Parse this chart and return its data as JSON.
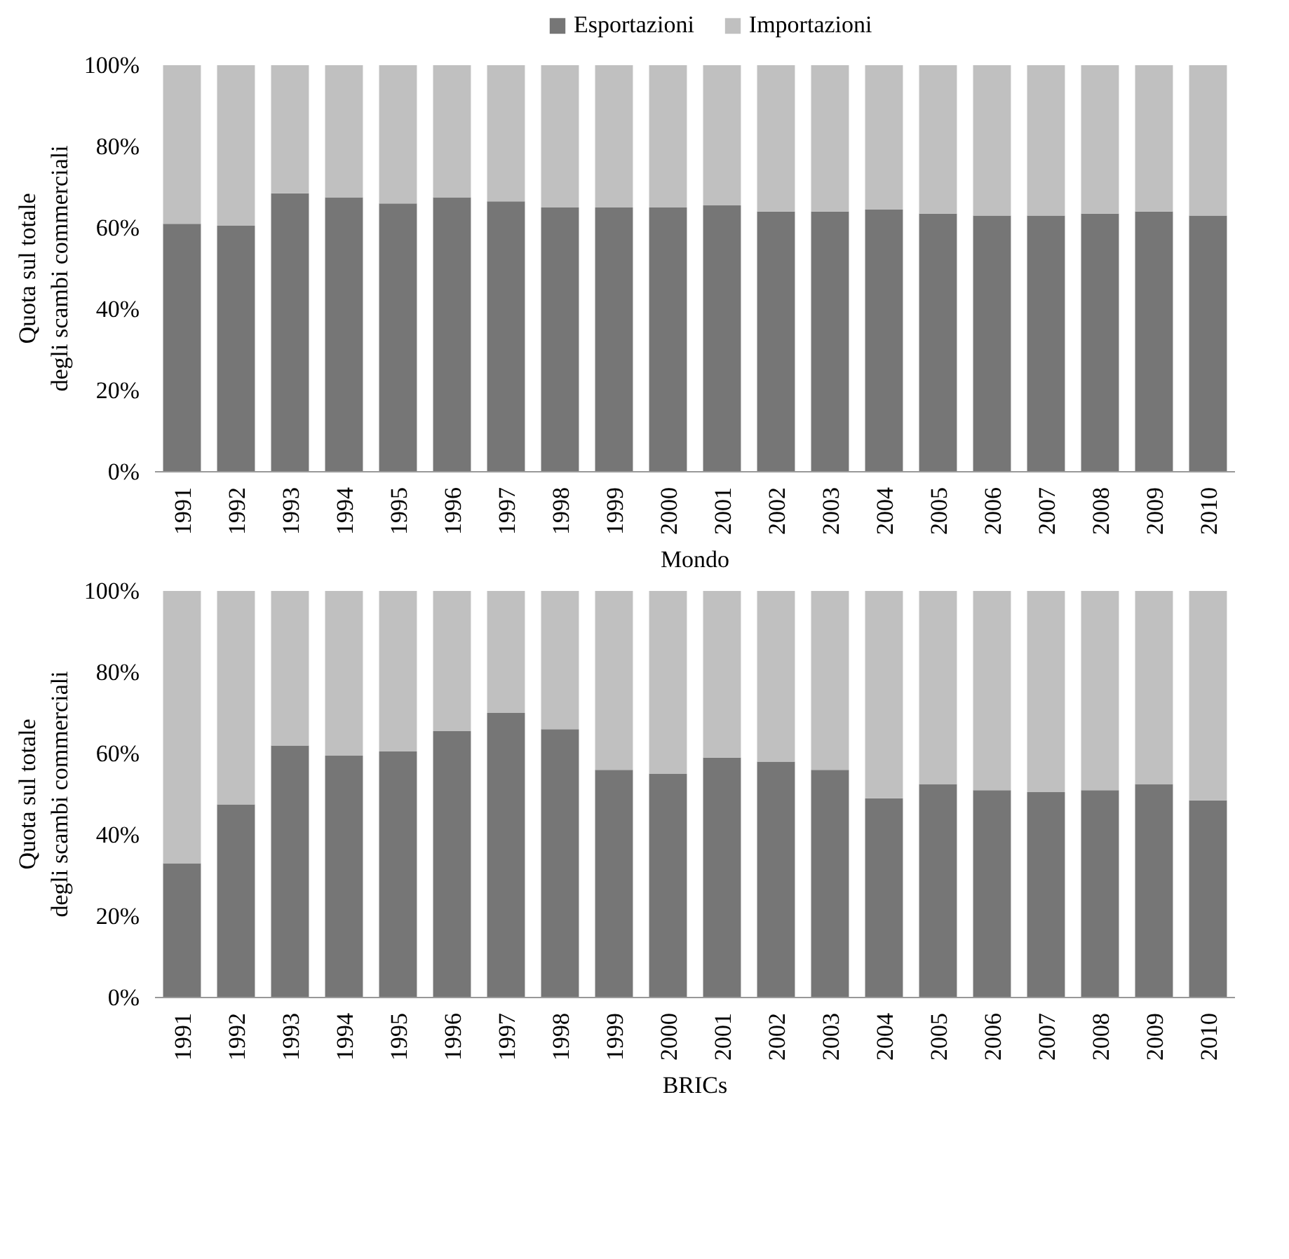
{
  "chart_data": [
    {
      "type": "bar",
      "stacked": true,
      "xlabel": "Mondo",
      "ylabel": "Quota sul totale\ndegli scambi commerciali",
      "legend": "top",
      "grid": false,
      "categories": [
        "1991",
        "1992",
        "1993",
        "1994",
        "1995",
        "1996",
        "1997",
        "1998",
        "1999",
        "2000",
        "2001",
        "2002",
        "2003",
        "2004",
        "2005",
        "2006",
        "2007",
        "2008",
        "2009",
        "2010"
      ],
      "ylim": [
        0,
        100
      ],
      "yticks": [
        {
          "value": 0,
          "label": "0%"
        },
        {
          "value": 20,
          "label": "20%"
        },
        {
          "value": 40,
          "label": "40%"
        },
        {
          "value": 60,
          "label": "60%"
        },
        {
          "value": 80,
          "label": "80%"
        },
        {
          "value": 100,
          "label": "100%"
        }
      ],
      "series": [
        {
          "name": "Esportazioni",
          "color": "#767676",
          "values": [
            61,
            60.5,
            68.5,
            67.5,
            66,
            67.5,
            66.5,
            65,
            65,
            65,
            65.5,
            64,
            64,
            64.5,
            63.5,
            63,
            63,
            63.5,
            64,
            63
          ]
        },
        {
          "name": "Importazioni",
          "color": "#c0c0c0",
          "values": [
            39,
            39.5,
            31.5,
            32.5,
            34,
            32.5,
            33.5,
            35,
            35,
            35,
            34.5,
            36,
            36,
            35.5,
            36.5,
            37,
            37,
            36.5,
            36,
            37
          ]
        }
      ]
    },
    {
      "type": "bar",
      "stacked": true,
      "xlabel": "BRICs",
      "ylabel": "Quota sul totale\ndegli scambi commerciali",
      "grid": false,
      "categories": [
        "1991",
        "1992",
        "1993",
        "1994",
        "1995",
        "1996",
        "1997",
        "1998",
        "1999",
        "2000",
        "2001",
        "2002",
        "2003",
        "2004",
        "2005",
        "2006",
        "2007",
        "2008",
        "2009",
        "2010"
      ],
      "ylim": [
        0,
        100
      ],
      "yticks": [
        {
          "value": 0,
          "label": "0%"
        },
        {
          "value": 20,
          "label": "20%"
        },
        {
          "value": 40,
          "label": "40%"
        },
        {
          "value": 60,
          "label": "60%"
        },
        {
          "value": 80,
          "label": "80%"
        },
        {
          "value": 100,
          "label": "100%"
        }
      ],
      "series": [
        {
          "color": "#767676",
          "values": [
            33,
            47.5,
            62,
            59.5,
            60.5,
            65.5,
            70,
            66,
            56,
            55,
            59,
            58,
            56,
            49,
            52.5,
            51,
            50.5,
            51,
            52.5,
            48.5
          ]
        },
        {
          "color": "#c0c0c0",
          "values": [
            67,
            52.5,
            38,
            40.5,
            39.5,
            34.5,
            30,
            34,
            44,
            45,
            41,
            42,
            44,
            51,
            47.5,
            49,
            49.5,
            49,
            47.5,
            51.5
          ]
        }
      ]
    }
  ]
}
